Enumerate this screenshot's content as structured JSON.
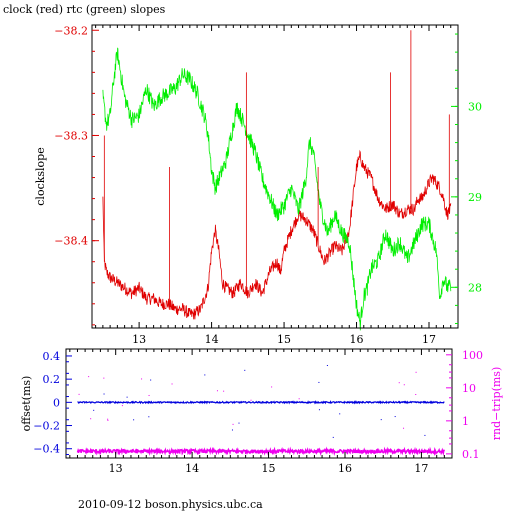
{
  "title": "clock (red) rtc (green) slopes",
  "footer": "2010-09-12 boson.physics.ubc.ca",
  "colors": {
    "red": "#e00000",
    "green": "#00ee00",
    "blue": "#0000dd",
    "magenta": "#ee00ee",
    "frame": "#000000"
  },
  "chart_data": [
    {
      "type": "line",
      "title": "clock (red) rtc (green) slopes",
      "xlabel": "",
      "ylabel": "clockslope",
      "y2label": "",
      "xlim": [
        12.35,
        17.4
      ],
      "ylim": [
        -38.483,
        -38.195
      ],
      "y2lim": [
        27.55,
        30.9
      ],
      "xticks": [
        13,
        14,
        15,
        16,
        17
      ],
      "yticks": [
        -38.2,
        -38.3,
        -38.4
      ],
      "yticklabels": [
        "−38.2",
        "−38.3",
        "−38.4"
      ],
      "y2ticks": [
        28,
        29,
        30
      ],
      "grid": false,
      "series": [
        {
          "color": "#e00000",
          "axis": "left",
          "x": [
            12.5,
            12.52,
            12.55,
            12.6,
            12.7,
            12.8,
            12.9,
            13.0,
            13.1,
            13.2,
            13.3,
            13.4,
            13.5,
            13.6,
            13.7,
            13.75,
            13.85,
            13.95,
            14.0,
            14.05,
            14.1,
            14.15,
            14.2,
            14.3,
            14.4,
            14.5,
            14.6,
            14.7,
            14.8,
            14.9,
            14.95,
            15.0,
            15.1,
            15.2,
            15.3,
            15.4,
            15.5,
            15.55,
            15.6,
            15.7,
            15.8,
            15.9,
            16.0,
            16.05,
            16.1,
            16.2,
            16.3,
            16.4,
            16.5,
            16.6,
            16.7,
            16.8,
            16.85,
            16.9,
            17.0,
            17.05,
            17.1,
            17.15,
            17.2,
            17.25,
            17.3
          ],
          "y": [
            -38.36,
            -38.42,
            -38.43,
            -38.435,
            -38.44,
            -38.445,
            -38.45,
            -38.445,
            -38.455,
            -38.455,
            -38.46,
            -38.46,
            -38.465,
            -38.465,
            -38.47,
            -38.47,
            -38.465,
            -38.445,
            -38.41,
            -38.39,
            -38.41,
            -38.44,
            -38.445,
            -38.45,
            -38.44,
            -38.45,
            -38.44,
            -38.45,
            -38.43,
            -38.42,
            -38.43,
            -38.41,
            -38.39,
            -38.375,
            -38.38,
            -38.39,
            -38.41,
            -38.42,
            -38.415,
            -38.405,
            -38.41,
            -38.39,
            -38.33,
            -38.32,
            -38.33,
            -38.34,
            -38.36,
            -38.37,
            -38.365,
            -38.375,
            -38.37,
            -38.37,
            -38.36,
            -38.36,
            -38.345,
            -38.34,
            -38.345,
            -38.35,
            -38.36,
            -38.375,
            -38.37
          ]
        },
        {
          "color": "#00ee00",
          "axis": "right",
          "x": [
            12.5,
            12.55,
            12.6,
            12.65,
            12.7,
            12.8,
            12.9,
            13.0,
            13.1,
            13.2,
            13.3,
            13.4,
            13.5,
            13.6,
            13.7,
            13.8,
            13.9,
            13.95,
            14.0,
            14.05,
            14.1,
            14.2,
            14.3,
            14.35,
            14.4,
            14.5,
            14.6,
            14.7,
            14.8,
            14.9,
            15.0,
            15.1,
            15.2,
            15.3,
            15.35,
            15.4,
            15.5,
            15.6,
            15.7,
            15.8,
            15.9,
            16.0,
            16.05,
            16.1,
            16.15,
            16.2,
            16.3,
            16.4,
            16.5,
            16.6,
            16.7,
            16.8,
            16.9,
            17.0,
            17.1,
            17.15,
            17.2,
            17.25,
            17.3
          ],
          "y": [
            30.1,
            29.8,
            29.9,
            30.3,
            30.6,
            30.1,
            29.85,
            29.9,
            30.2,
            30.0,
            30.1,
            30.15,
            30.2,
            30.35,
            30.3,
            30.15,
            29.9,
            29.7,
            29.3,
            29.1,
            29.2,
            29.4,
            29.8,
            30.0,
            29.9,
            29.7,
            29.5,
            29.2,
            29.0,
            28.8,
            28.9,
            29.1,
            28.85,
            29.2,
            29.6,
            29.5,
            28.9,
            28.6,
            28.8,
            28.6,
            28.5,
            27.8,
            27.6,
            27.9,
            28.0,
            28.2,
            28.3,
            28.6,
            28.4,
            28.5,
            28.3,
            28.5,
            28.7,
            28.7,
            28.4,
            27.9,
            28.1,
            28.0,
            28.0
          ]
        }
      ]
    },
    {
      "type": "scatter",
      "xlabel": "",
      "ylabel": "offset(ms)",
      "y2label": "rnd−trip(ms)",
      "xlim": [
        12.35,
        17.4
      ],
      "ylim": [
        -0.48,
        0.46
      ],
      "y2lim": [
        0.075,
        150
      ],
      "y2scale": "log",
      "xticks": [
        13,
        14,
        15,
        16,
        17
      ],
      "yticks": [
        0.4,
        0.2,
        0,
        -0.2,
        -0.4
      ],
      "yticklabels": [
        "0.4",
        "0.2",
        "0",
        "−0.2",
        "−0.4"
      ],
      "y2ticks": [
        100,
        10,
        1,
        0.1
      ],
      "grid": false,
      "series": [
        {
          "color": "#0000dd",
          "axis": "left",
          "x": [
            12.5,
            13.0,
            13.5,
            14.0,
            14.5,
            15.0,
            15.5,
            16.0,
            16.5,
            17.0,
            17.3
          ],
          "y": [
            0.0,
            0.0,
            0.0,
            0.0,
            0.0,
            0.0,
            0.0,
            0.0,
            0.0,
            0.0,
            0.0
          ]
        },
        {
          "color": "#ee00ee",
          "axis": "right",
          "x": [
            12.5,
            13.0,
            13.5,
            14.0,
            14.5,
            15.0,
            15.5,
            16.0,
            16.5,
            17.0,
            17.3
          ],
          "y": [
            0.12,
            0.12,
            0.12,
            0.12,
            0.12,
            0.12,
            0.12,
            0.12,
            0.12,
            0.12,
            0.12
          ]
        }
      ]
    }
  ]
}
